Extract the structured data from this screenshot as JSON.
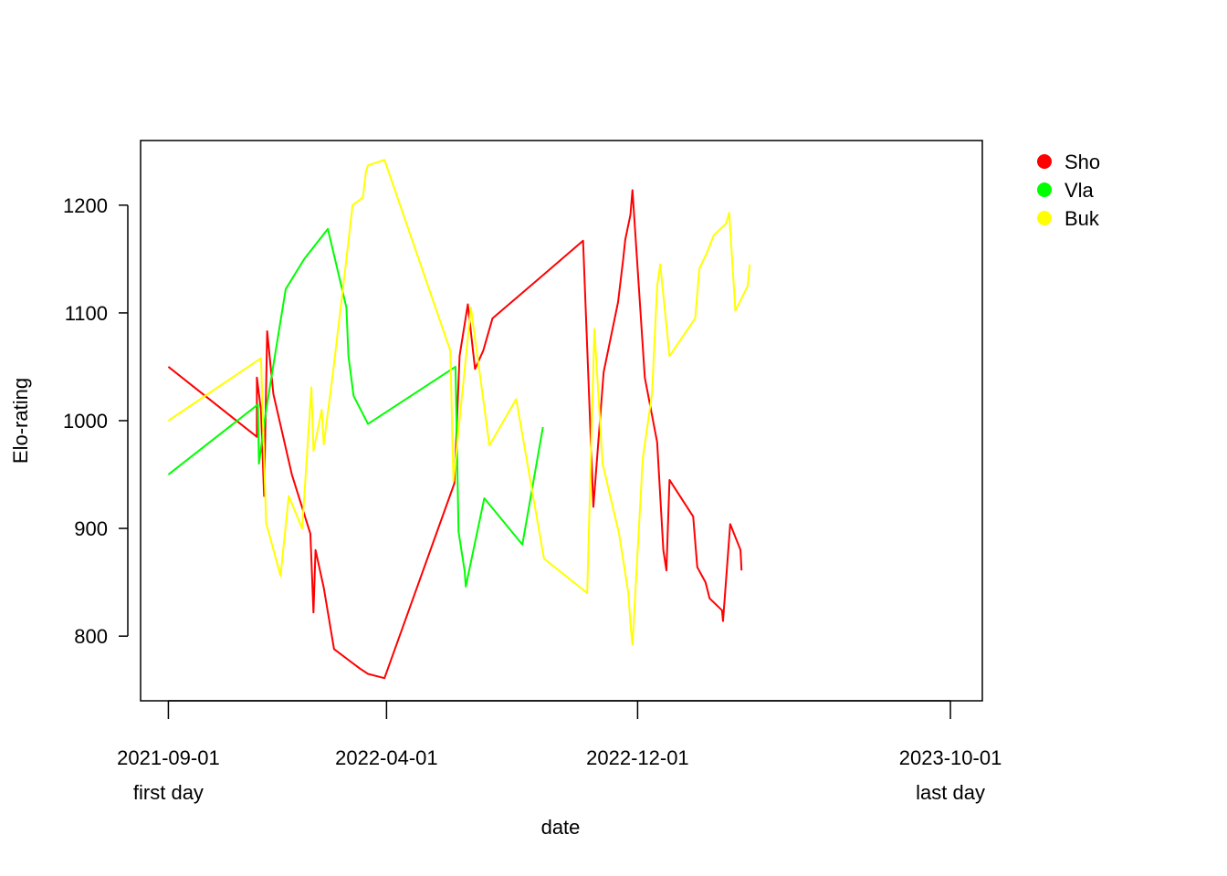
{
  "chart_data": {
    "type": "line",
    "title": "",
    "xlabel": "date",
    "ylabel": "Elo-rating",
    "xlim": [
      "2021-08-05",
      "2023-11-01"
    ],
    "ylim": [
      740,
      1260
    ],
    "grid": false,
    "legend_position": "right-outside",
    "x_ticks": [
      {
        "date": "2021-09-01",
        "label": "2021-09-01",
        "sublabel": "first day"
      },
      {
        "date": "2022-04-01",
        "label": "2022-04-01",
        "sublabel": ""
      },
      {
        "date": "2022-12-01",
        "label": "2022-12-01",
        "sublabel": ""
      },
      {
        "date": "2023-10-01",
        "label": "2023-10-01",
        "sublabel": "last day"
      }
    ],
    "y_ticks": [
      800,
      900,
      1000,
      1100,
      1200
    ],
    "series": [
      {
        "name": "Sho",
        "color": "#FF0000",
        "points": [
          [
            "2021-09-01",
            1050
          ],
          [
            "2021-11-26",
            985
          ],
          [
            "2021-11-26",
            1040
          ],
          [
            "2021-11-30",
            1010
          ],
          [
            "2021-12-03",
            930
          ],
          [
            "2021-12-06",
            1083
          ],
          [
            "2021-12-12",
            1025
          ],
          [
            "2021-12-30",
            950
          ],
          [
            "2022-01-17",
            895
          ],
          [
            "2022-01-20",
            822
          ],
          [
            "2022-01-22",
            880
          ],
          [
            "2022-01-30",
            845
          ],
          [
            "2022-02-09",
            788
          ],
          [
            "2022-03-06",
            770
          ],
          [
            "2022-03-14",
            765
          ],
          [
            "2022-03-30",
            761
          ],
          [
            "2022-06-06",
            942
          ],
          [
            "2022-06-11",
            1060
          ],
          [
            "2022-06-19",
            1108
          ],
          [
            "2022-06-26",
            1048
          ],
          [
            "2022-07-04",
            1065
          ],
          [
            "2022-07-13",
            1095
          ],
          [
            "2022-08-31",
            1135
          ],
          [
            "2022-10-09",
            1167
          ],
          [
            "2022-10-19",
            920
          ],
          [
            "2022-10-29",
            1045
          ],
          [
            "2022-11-12",
            1110
          ],
          [
            "2022-11-17",
            1150
          ],
          [
            "2022-11-19",
            1168
          ],
          [
            "2022-11-24",
            1191
          ],
          [
            "2022-11-26",
            1214
          ],
          [
            "2022-12-08",
            1040
          ],
          [
            "2022-12-20",
            980
          ],
          [
            "2022-12-26",
            880
          ],
          [
            "2022-12-29",
            861
          ],
          [
            "2023-01-01",
            945
          ],
          [
            "2023-01-24",
            911
          ],
          [
            "2023-01-28",
            864
          ],
          [
            "2023-02-05",
            850
          ],
          [
            "2023-02-09",
            835
          ],
          [
            "2023-02-21",
            824
          ],
          [
            "2023-02-22",
            814
          ],
          [
            "2023-03-01",
            904
          ],
          [
            "2023-03-11",
            880
          ],
          [
            "2023-03-12",
            861
          ]
        ]
      },
      {
        "name": "Vla",
        "color": "#00FF00",
        "points": [
          [
            "2021-09-01",
            950
          ],
          [
            "2021-11-27",
            1015
          ],
          [
            "2021-11-28",
            960
          ],
          [
            "2021-12-05",
            1010
          ],
          [
            "2021-12-24",
            1122
          ],
          [
            "2022-01-11",
            1150
          ],
          [
            "2022-02-03",
            1178
          ],
          [
            "2022-02-21",
            1105
          ],
          [
            "2022-02-23",
            1060
          ],
          [
            "2022-02-28",
            1023
          ],
          [
            "2022-03-14",
            997
          ],
          [
            "2022-06-07",
            1050
          ],
          [
            "2022-06-10",
            897
          ],
          [
            "2022-06-16",
            860
          ],
          [
            "2022-06-17",
            846
          ],
          [
            "2022-07-05",
            928
          ],
          [
            "2022-08-11",
            885
          ],
          [
            "2022-08-31",
            994
          ]
        ]
      },
      {
        "name": "Buk",
        "color": "#FFFF00",
        "points": [
          [
            "2021-09-01",
            1000
          ],
          [
            "2021-11-30",
            1058
          ],
          [
            "2021-12-05",
            905
          ],
          [
            "2021-12-19",
            856
          ],
          [
            "2021-12-27",
            930
          ],
          [
            "2022-01-09",
            900
          ],
          [
            "2022-01-18",
            1031
          ],
          [
            "2022-01-20",
            972
          ],
          [
            "2022-01-28",
            1010
          ],
          [
            "2022-01-30",
            978
          ],
          [
            "2022-02-08",
            1045
          ],
          [
            "2022-02-21",
            1150
          ],
          [
            "2022-02-27",
            1200
          ],
          [
            "2022-03-09",
            1207
          ],
          [
            "2022-03-12",
            1231
          ],
          [
            "2022-03-14",
            1237
          ],
          [
            "2022-03-30",
            1242
          ],
          [
            "2022-06-02",
            1065
          ],
          [
            "2022-06-05",
            944
          ],
          [
            "2022-06-22",
            1105
          ],
          [
            "2022-07-10",
            977
          ],
          [
            "2022-08-05",
            1020
          ],
          [
            "2022-09-01",
            872
          ],
          [
            "2022-10-13",
            840
          ],
          [
            "2022-10-20",
            1085
          ],
          [
            "2022-10-28",
            960
          ],
          [
            "2022-11-13",
            895
          ],
          [
            "2022-11-22",
            840
          ],
          [
            "2022-11-24",
            812
          ],
          [
            "2022-11-26",
            792
          ],
          [
            "2022-12-06",
            965
          ],
          [
            "2022-12-15",
            1025
          ],
          [
            "2022-12-20",
            1125
          ],
          [
            "2022-12-23",
            1145
          ],
          [
            "2023-01-01",
            1060
          ],
          [
            "2023-01-26",
            1095
          ],
          [
            "2023-01-30",
            1141
          ],
          [
            "2023-02-06",
            1155
          ],
          [
            "2023-02-13",
            1172
          ],
          [
            "2023-02-25",
            1183
          ],
          [
            "2023-02-28",
            1193
          ],
          [
            "2023-03-06",
            1102
          ],
          [
            "2023-03-18",
            1125
          ],
          [
            "2023-03-20",
            1145
          ]
        ]
      }
    ]
  }
}
